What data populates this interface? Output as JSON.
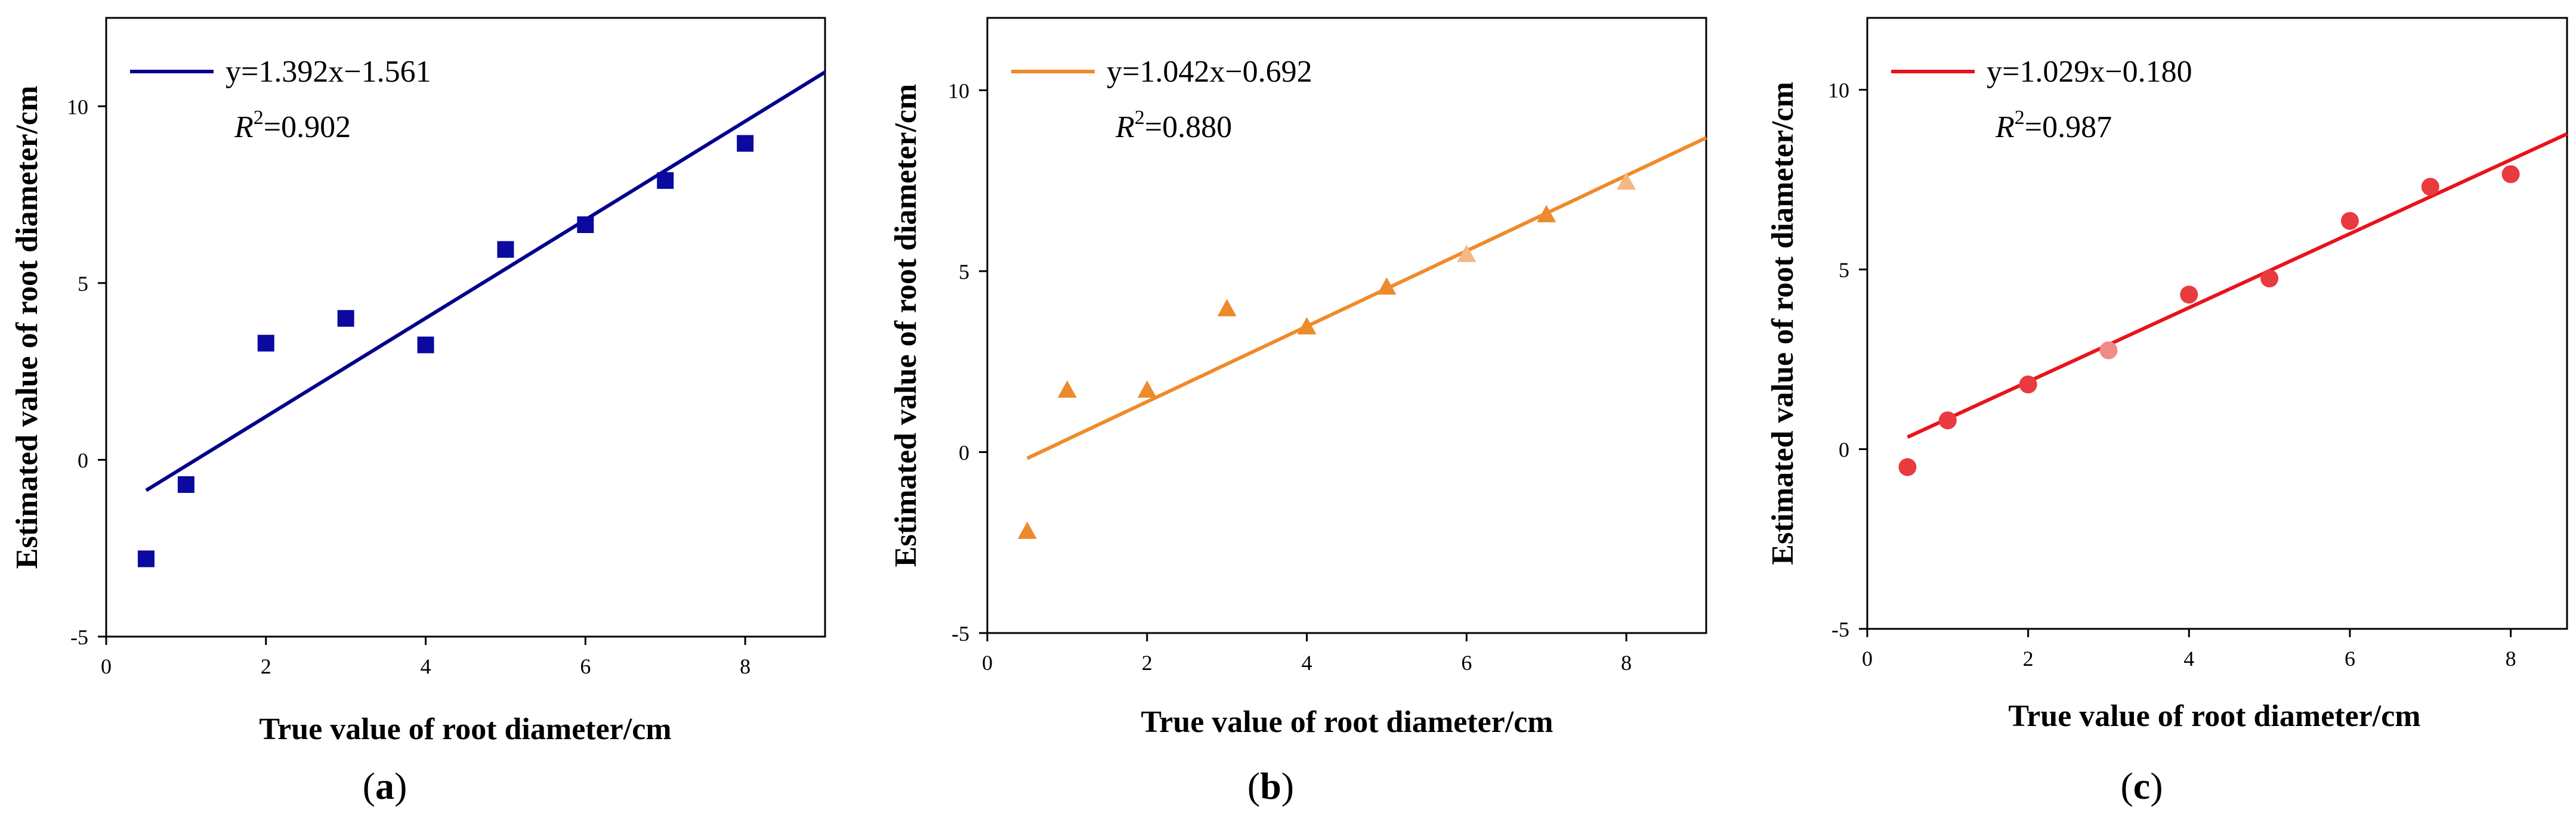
{
  "chart_data": [
    {
      "type": "scatter",
      "panel_label": "a",
      "xlabel": "True value of root diameter/cm",
      "ylabel": "Estimated value of root diameter/cm",
      "xlim": [
        0,
        9
      ],
      "ylim": [
        -5,
        12.5
      ],
      "xticks": [
        "0",
        "2",
        "4",
        "6",
        "8"
      ],
      "yticks": [
        "-5",
        "0",
        "5",
        "10"
      ],
      "marker": "square",
      "colors": {
        "line": "#00008b",
        "points": [
          "#0a0aa0"
        ]
      },
      "x": [
        0.5,
        1,
        2,
        3,
        4,
        5,
        6,
        7,
        8
      ],
      "y": [
        -2.8,
        -0.7,
        3.3,
        4.0,
        3.25,
        5.95,
        6.65,
        7.9,
        8.95
      ],
      "fit": {
        "slope": 1.392,
        "intercept": -1.561,
        "x_range": [
          0.5,
          9
        ]
      },
      "legend": {
        "equation": "y=1.392x−1.561",
        "r2_symbol": "R",
        "r2_sup": "2",
        "r2_value": "=0.902",
        "position": "top-left"
      }
    },
    {
      "type": "scatter",
      "panel_label": "b",
      "xlabel": "True value of root diameter/cm",
      "ylabel": "Estimated value of root diameter/cm",
      "xlim": [
        0,
        9
      ],
      "ylim": [
        -5,
        12
      ],
      "xticks": [
        "0",
        "2",
        "4",
        "6",
        "8"
      ],
      "yticks": [
        "-5",
        "0",
        "5",
        "10"
      ],
      "marker": "triangle",
      "colors": {
        "line": "#f08a2a",
        "points": [
          "#ec8a2c",
          "#ec8a2c",
          "#ec8a2c",
          "#ec8a2c",
          "#ec8a2c",
          "#ec8a2c",
          "#f5b884",
          "#ec8a2c",
          "#f5b884"
        ]
      },
      "x": [
        0.5,
        1,
        2,
        3,
        4,
        5,
        6,
        7,
        8
      ],
      "y": [
        -2.2,
        1.7,
        1.7,
        3.95,
        3.45,
        4.55,
        5.45,
        6.55,
        7.45
      ],
      "fit": {
        "slope": 1.042,
        "intercept": -0.692,
        "x_range": [
          0.5,
          9
        ]
      },
      "legend": {
        "equation": "y=1.042x−0.692",
        "r2_symbol": "R",
        "r2_sup": "2",
        "r2_value": "=0.880",
        "position": "top-left"
      }
    },
    {
      "type": "scatter",
      "panel_label": "c",
      "xlabel": "True value of root diameter/cm",
      "ylabel": "Estimated value of root diameter/cm",
      "xlim": [
        0,
        8.7
      ],
      "ylim": [
        -5,
        12
      ],
      "xticks": [
        "0",
        "2",
        "4",
        "6",
        "8"
      ],
      "yticks": [
        "-5",
        "0",
        "5",
        "10"
      ],
      "marker": "circle",
      "colors": {
        "line": "#e8131b",
        "points": [
          "#e83a3f",
          "#e83a3f",
          "#e83a3f",
          "#f28a8a",
          "#e83a3f",
          "#e83a3f",
          "#e83a3f",
          "#e83a3f",
          "#e83a3f"
        ]
      },
      "x": [
        0.5,
        1,
        2,
        3,
        4,
        5,
        6,
        7,
        8
      ],
      "y": [
        -0.5,
        0.8,
        1.8,
        2.75,
        4.3,
        4.75,
        6.35,
        7.3,
        7.65
      ],
      "fit": {
        "slope": 1.029,
        "intercept": -0.18,
        "x_range": [
          0.5,
          8.7
        ]
      },
      "legend": {
        "equation": "y=1.029x−0.180",
        "r2_symbol": "R",
        "r2_sup": "2",
        "r2_value": "=0.987",
        "position": "top-left"
      }
    }
  ]
}
